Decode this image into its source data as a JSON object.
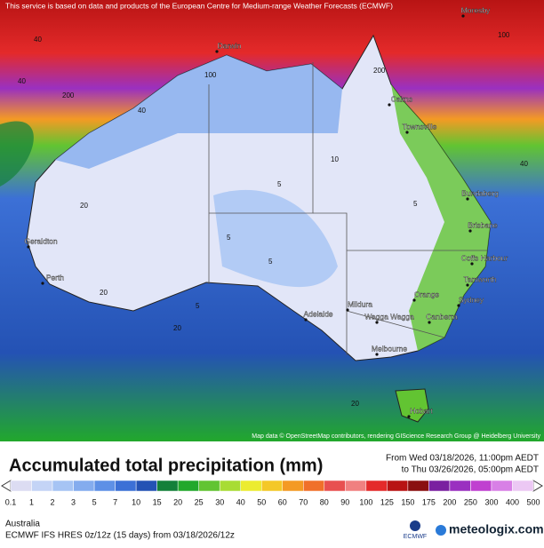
{
  "header": {
    "notice": "This service is based on data and products of the European Centre for Medium-range Weather Forecasts (ECMWF)"
  },
  "cities": [
    "Moresby",
    "Darwin",
    "Cairns",
    "Townsville",
    "Bundaberg",
    "Brisbane",
    "Coffs Harbour",
    "Tamworth",
    "Geraldton",
    "Perth",
    "Adelaide",
    "Mildura",
    "Orange",
    "Sydney",
    "Wagga Wagga",
    "Canberra",
    "Melbourne",
    "Hobart"
  ],
  "contour_labels": [
    "40",
    "200",
    "100",
    "40",
    "20",
    "5",
    "5",
    "5",
    "10",
    "20",
    "40",
    "20",
    "5",
    "100",
    "200",
    "40",
    "5",
    "20"
  ],
  "attribution": "Map data © OpenStreetMap contributors, rendering GIScience Research Group @ Heidelberg University",
  "title": "Accumulated total precipitation (mm)",
  "period": {
    "from": "From Wed 03/18/2026, 11:00pm AEDT",
    "to": "to Thu 03/26/2026, 05:00pm AEDT"
  },
  "legend": {
    "labels": [
      "0.1",
      "1",
      "2",
      "3",
      "5",
      "7",
      "10",
      "15",
      "20",
      "25",
      "30",
      "40",
      "50",
      "60",
      "70",
      "80",
      "90",
      "100",
      "125",
      "150",
      "175",
      "200",
      "250",
      "300",
      "400",
      "500"
    ],
    "colors": [
      "#dcdcf2",
      "#c4d4f6",
      "#a6c4f4",
      "#84acee",
      "#5e90e6",
      "#3c70d6",
      "#2452b4",
      "#14803a",
      "#22a82c",
      "#62c432",
      "#a8dc34",
      "#ecec30",
      "#f4c828",
      "#f49a24",
      "#f0702a",
      "#e85050",
      "#f08080",
      "#e42a2a",
      "#b81414",
      "#8a1010",
      "#7a20a0",
      "#9a30c0",
      "#c040d0",
      "#d880e6",
      "#ecc8f4"
    ]
  },
  "footer": {
    "region": "Australia",
    "model": "ECMWF IFS HRES 0z/12z (15 days) from 03/18/2026/12z",
    "logo": "ECMWF",
    "brand": "meteologix.com"
  }
}
